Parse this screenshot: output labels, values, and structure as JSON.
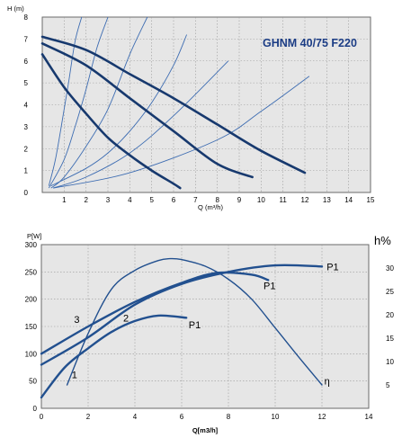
{
  "colors": {
    "plot_bg": "#e6e6e6",
    "grid": "#9a9a9a",
    "curve_dark": "#17396e",
    "curve_medium": "#22508f",
    "curve_thin": "#3e6db2",
    "title": "#1c3d85"
  },
  "chart_data": [
    {
      "type": "line",
      "title": "GHNM 40/75 F220",
      "ylabel": "H (m)",
      "xlabel": "Q (m³/h)",
      "xlim": [
        0,
        15
      ],
      "ylim": [
        0,
        8
      ],
      "grid": true,
      "x_ticks": [
        "1",
        "2",
        "3",
        "4",
        "5",
        "6",
        "7",
        "8",
        "9",
        "10",
        "11",
        "12",
        "13",
        "14",
        "15"
      ],
      "y_ticks": [
        "0",
        "1",
        "2",
        "3",
        "4",
        "5",
        "6",
        "7",
        "8"
      ],
      "pump_curves": [
        {
          "x": [
            0,
            1,
            2,
            3,
            4,
            5,
            6,
            6.3
          ],
          "y": [
            6.3,
            4.8,
            3.6,
            2.5,
            1.7,
            1.0,
            0.4,
            0.2
          ]
        },
        {
          "x": [
            0,
            2,
            4,
            6,
            8,
            9.6
          ],
          "y": [
            6.8,
            5.8,
            4.3,
            2.8,
            1.3,
            0.7
          ]
        },
        {
          "x": [
            0,
            2,
            4,
            6,
            8,
            10,
            12
          ],
          "y": [
            7.1,
            6.5,
            5.4,
            4.3,
            3.1,
            1.9,
            0.9
          ]
        }
      ],
      "system_curves": [
        {
          "x": [
            0.3,
            0.6,
            0.9,
            1.2,
            1.5,
            1.8
          ],
          "y": [
            0.3,
            1.5,
            3.2,
            5.0,
            6.9,
            8.0
          ]
        },
        {
          "x": [
            0.3,
            1,
            1.5,
            2,
            2.5,
            3.0
          ],
          "y": [
            0.2,
            1.5,
            3.0,
            4.7,
            6.6,
            8.0
          ]
        },
        {
          "x": [
            0.4,
            1,
            2,
            3,
            4,
            4.8
          ],
          "y": [
            0.2,
            0.7,
            2.1,
            3.8,
            6.3,
            8.0
          ]
        },
        {
          "x": [
            0.4,
            2,
            3,
            4,
            5,
            6,
            6.6
          ],
          "y": [
            0.3,
            1.1,
            1.8,
            2.8,
            4.1,
            5.8,
            7.2
          ]
        },
        {
          "x": [
            0.5,
            2,
            4,
            6,
            8.5
          ],
          "y": [
            0.2,
            0.7,
            1.8,
            3.5,
            6.0
          ]
        },
        {
          "x": [
            0.5,
            4,
            8,
            10,
            12.2
          ],
          "y": [
            0.2,
            0.9,
            2.4,
            3.7,
            5.3
          ]
        }
      ]
    },
    {
      "type": "line",
      "xlabel": "Q[m3/h]",
      "ylabel": "P[W]",
      "y2label": "h%",
      "xlim": [
        0,
        14
      ],
      "ylim": [
        0,
        300
      ],
      "y2lim": [
        0,
        35
      ],
      "grid": true,
      "x_ticks": [
        "0",
        "2",
        "4",
        "6",
        "8",
        "10",
        "12",
        "14"
      ],
      "y_ticks": [
        "0",
        "50",
        "100",
        "150",
        "200",
        "250",
        "300"
      ],
      "y2_ticks": [
        "5",
        "10",
        "15",
        "20",
        "25",
        "30"
      ],
      "series": [
        {
          "label": "3",
          "x": [
            0,
            2,
            4,
            6,
            7.5,
            9,
            9.7
          ],
          "y": [
            100,
            150,
            195,
            230,
            248,
            245,
            235
          ]
        },
        {
          "label": "2",
          "x": [
            0,
            2,
            4,
            6,
            8,
            10,
            12
          ],
          "y": [
            80,
            130,
            190,
            228,
            250,
            262,
            260
          ]
        },
        {
          "label": "1",
          "x": [
            0,
            1,
            2,
            3,
            4,
            5,
            6.2
          ],
          "y": [
            20,
            75,
            110,
            140,
            160,
            170,
            166
          ]
        },
        {
          "label": "η",
          "axis": "right",
          "x": [
            1.1,
            2,
            3,
            4,
            5,
            5.5,
            6,
            7,
            8,
            9,
            10,
            11,
            12
          ],
          "y": [
            5,
            16,
            25.5,
            29.5,
            31.6,
            32,
            31.8,
            30.4,
            27.6,
            23.3,
            17.2,
            11,
            5
          ]
        }
      ],
      "annotations": [
        {
          "text": "P1",
          "x": 12.2,
          "y": 260
        },
        {
          "text": "P1",
          "x": 9.5,
          "y": 225
        },
        {
          "text": "P1",
          "x": 6.3,
          "y": 153
        },
        {
          "text": "3",
          "x": 1.4,
          "y": 163
        },
        {
          "text": "2",
          "x": 3.5,
          "y": 166
        },
        {
          "text": "1",
          "x": 1.3,
          "y": 62
        },
        {
          "text": "η",
          "x": 12.1,
          "y": 50
        }
      ]
    }
  ]
}
